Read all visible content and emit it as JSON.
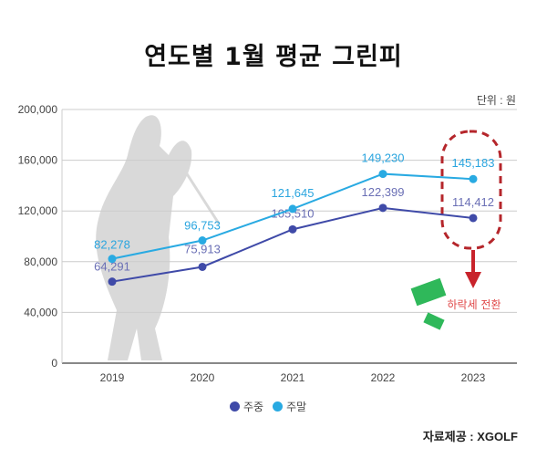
{
  "chart_data": {
    "type": "line",
    "title": "연도별 1월 평균 그린피",
    "unit_label": "단위 : 원",
    "categories": [
      "2019",
      "2020",
      "2021",
      "2022",
      "2023"
    ],
    "ylim": [
      0,
      200000
    ],
    "yticks": [
      "0",
      "40,000",
      "80,000",
      "120,000",
      "160,000",
      "200,000"
    ],
    "grid": true,
    "legend_position": "bottom",
    "series": [
      {
        "name": "주중",
        "color": "#3f4aa8",
        "label_color": "#6a6fb5",
        "values": [
          64291,
          75913,
          105510,
          122399,
          114412
        ],
        "labels": [
          "64,291",
          "75,913",
          "105,510",
          "122,399",
          "114,412"
        ]
      },
      {
        "name": "주말",
        "color": "#29aae2",
        "label_color": "#2aa5df",
        "values": [
          82278,
          96753,
          121645,
          149230,
          145183
        ],
        "labels": [
          "82,278",
          "96,753",
          "121,645",
          "149,230",
          "145,183"
        ]
      }
    ],
    "annotation": {
      "text": "하락세 전환",
      "color": "#e04a4a",
      "highlight_color": "#b5262b"
    },
    "source": "자료제공 : XGOLF"
  }
}
